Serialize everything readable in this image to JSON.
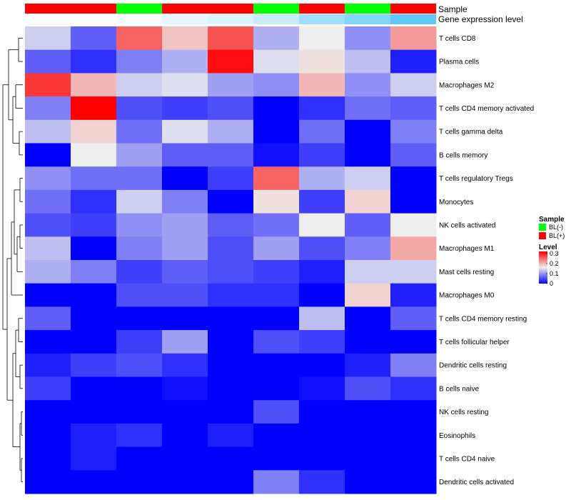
{
  "chart_data": {
    "type": "heatmap",
    "title": "",
    "annotation_labels": {
      "sample": "Sample",
      "expression": "Gene expression level"
    },
    "sample_groups": [
      "BL(+)",
      "BL(+)",
      "BL(-)",
      "BL(+)",
      "BL(+)",
      "BL(-)",
      "BL(+)",
      "BL(-)",
      "BL(+)"
    ],
    "expression_level_bar": [
      0.0,
      0.0,
      0.05,
      0.15,
      0.2,
      0.3,
      0.55,
      0.7,
      0.9
    ],
    "rows": [
      "T cells CD8",
      "Plasma cells",
      "Macrophages M2",
      "T cells CD4 memory activated",
      "T cells gamma delta",
      "B cells memory",
      "T cells regulatory  Tregs",
      "Monocytes",
      "NK cells activated",
      "Macrophages M1",
      "Mast cells resting",
      "Macrophages M0",
      "T cells CD4 memory resting",
      "T cells follicular helper",
      "Dendritic cells resting",
      "B cells naive",
      "NK cells resting",
      "Eosinophils",
      "T cells CD4 naive",
      "Dendritic cells activated"
    ],
    "values": [
      [
        0.13,
        0.06,
        0.25,
        0.18,
        0.26,
        0.11,
        0.15,
        0.09,
        0.21
      ],
      [
        0.06,
        0.03,
        0.08,
        0.11,
        0.31,
        0.14,
        0.16,
        0.12,
        0.02
      ],
      [
        0.28,
        0.19,
        0.13,
        0.14,
        0.1,
        0.09,
        0.19,
        0.09,
        0.13
      ],
      [
        0.08,
        0.32,
        0.05,
        0.04,
        0.05,
        0.0,
        0.03,
        0.07,
        0.06
      ],
      [
        0.12,
        0.17,
        0.07,
        0.14,
        0.11,
        0.0,
        0.07,
        0.0,
        0.08
      ],
      [
        0.0,
        0.15,
        0.1,
        0.06,
        0.06,
        0.01,
        0.04,
        0.0,
        0.06
      ],
      [
        0.09,
        0.07,
        0.07,
        0.0,
        0.04,
        0.25,
        0.11,
        0.13,
        0.0
      ],
      [
        0.07,
        0.03,
        0.13,
        0.08,
        0.0,
        0.16,
        0.04,
        0.17,
        0.0
      ],
      [
        0.05,
        0.04,
        0.09,
        0.1,
        0.06,
        0.07,
        0.15,
        0.06,
        0.15
      ],
      [
        0.12,
        0.0,
        0.08,
        0.1,
        0.05,
        0.1,
        0.05,
        0.08,
        0.2
      ],
      [
        0.11,
        0.08,
        0.04,
        0.06,
        0.05,
        0.04,
        0.02,
        0.13,
        0.13
      ],
      [
        0.0,
        0.0,
        0.05,
        0.05,
        0.03,
        0.03,
        0.0,
        0.17,
        0.02
      ],
      [
        0.06,
        0.0,
        0.0,
        0.0,
        0.0,
        0.0,
        0.12,
        0.0,
        0.06
      ],
      [
        0.0,
        0.0,
        0.04,
        0.1,
        0.0,
        0.05,
        0.04,
        0.0,
        0.0
      ],
      [
        0.02,
        0.04,
        0.05,
        0.03,
        0.0,
        0.0,
        0.0,
        0.02,
        0.08
      ],
      [
        0.04,
        0.0,
        0.0,
        0.01,
        0.0,
        0.0,
        0.01,
        0.05,
        0.03
      ],
      [
        0.0,
        0.0,
        0.0,
        0.0,
        0.0,
        0.05,
        0.0,
        0.0,
        0.0
      ],
      [
        0.0,
        0.02,
        0.03,
        0.0,
        0.02,
        0.0,
        0.0,
        0.0,
        0.0
      ],
      [
        0.0,
        0.02,
        0.0,
        0.0,
        0.0,
        0.0,
        0.0,
        0.0,
        0.0
      ],
      [
        0.0,
        0.0,
        0.0,
        0.0,
        0.0,
        0.08,
        0.03,
        0.0,
        0.0
      ]
    ],
    "color_scale": {
      "min": 0,
      "mid": 0.15,
      "max": 0.32,
      "low_color": "#0000ff",
      "mid_color": "#eeeeee",
      "high_color": "#ff0000"
    },
    "legend": {
      "sample_title": "Sample",
      "sample_entries": [
        {
          "label": "BL(-)",
          "color": "#00ff00"
        },
        {
          "label": "BL(+)",
          "color": "#ff0000"
        }
      ],
      "level_title": "Level",
      "level_ticks": [
        "0.3",
        "0.2",
        "0.1",
        "0"
      ],
      "level_tick_values": [
        0.3,
        0.2,
        0.1,
        0
      ]
    },
    "group_colors": {
      "BL(-)": "#00ff00",
      "BL(+)": "#ff0000"
    },
    "expression_bar_colors": {
      "low": "#ffffff",
      "high": "#4fc3f7"
    }
  }
}
